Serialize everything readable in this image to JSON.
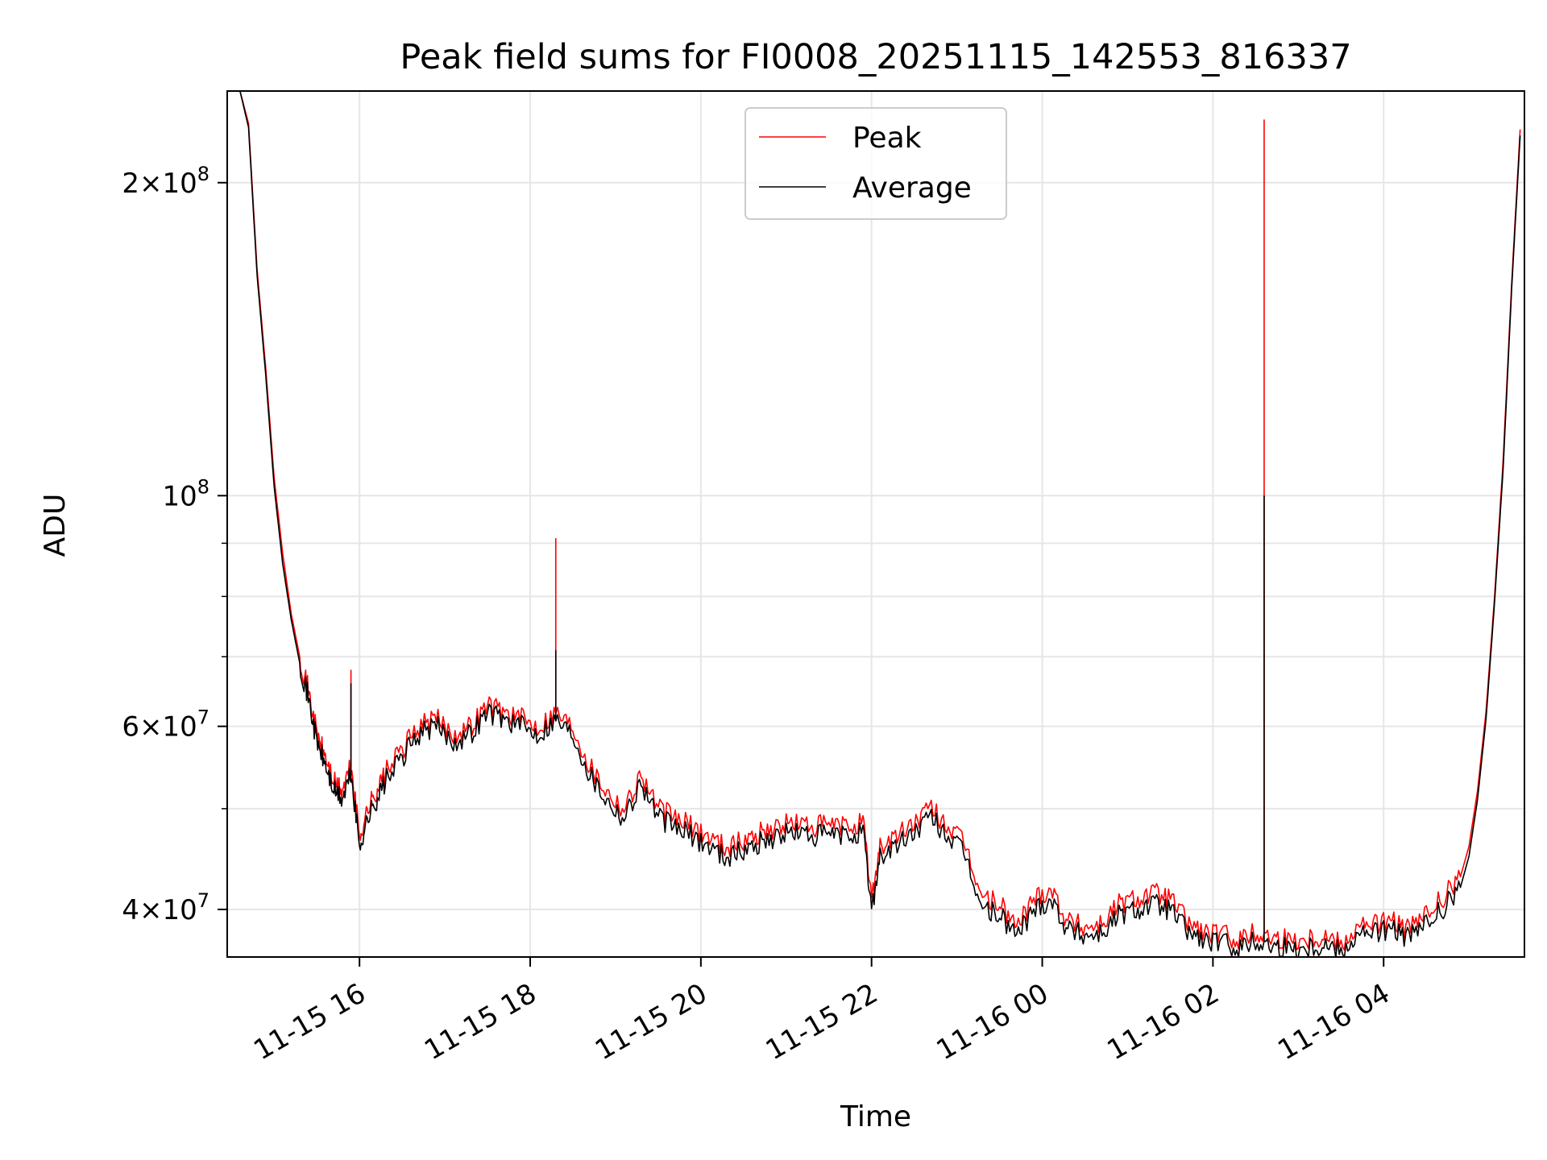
{
  "chart_data": {
    "type": "line",
    "title": "Peak field sums for FI0008_20251115_142553_816337",
    "xlabel": "Time",
    "ylabel": "ADU",
    "yscale": "log",
    "ylim": [
      36000000,
      245000000
    ],
    "xlim_hours_from_1115_0000": [
      14.45,
      29.65
    ],
    "grid": true,
    "legend_position": "top-center",
    "x_ticks": [
      {
        "h": 16,
        "label": "11-15 16"
      },
      {
        "h": 18,
        "label": "11-15 18"
      },
      {
        "h": 20,
        "label": "11-15 20"
      },
      {
        "h": 22,
        "label": "11-15 22"
      },
      {
        "h": 24,
        "label": "11-16 00"
      },
      {
        "h": 26,
        "label": "11-16 02"
      },
      {
        "h": 28,
        "label": "11-16 04"
      }
    ],
    "y_ticks": [
      {
        "v": 40000000,
        "mant": "4",
        "exp": "7"
      },
      {
        "v": 60000000,
        "mant": "6",
        "exp": "7"
      },
      {
        "v": 100000000,
        "mant": "",
        "exp": "8"
      },
      {
        "v": 200000000,
        "mant": "2",
        "exp": "8"
      }
    ],
    "y_minor_ticks": [
      50000000,
      70000000,
      80000000,
      90000000
    ],
    "times_hours_from_1115_0000": [
      14.6,
      14.7,
      14.8,
      14.9,
      15.0,
      15.1,
      15.2,
      15.3,
      15.4,
      15.5,
      15.6,
      15.7,
      15.8,
      15.9,
      16.0,
      16.1,
      16.2,
      16.3,
      16.5,
      16.7,
      16.9,
      17.1,
      17.3,
      17.5,
      17.7,
      17.9,
      18.1,
      18.3,
      18.5,
      18.7,
      18.9,
      19.1,
      19.3,
      19.5,
      19.7,
      19.9,
      20.1,
      20.3,
      20.5,
      20.7,
      20.9,
      21.1,
      21.3,
      21.5,
      21.7,
      21.9,
      22.0,
      22.1,
      22.3,
      22.5,
      22.7,
      22.9,
      23.1,
      23.3,
      23.5,
      23.7,
      23.9,
      24.1,
      24.3,
      24.5,
      24.7,
      24.9,
      25.1,
      25.3,
      25.5,
      25.7,
      25.9,
      26.1,
      26.3,
      26.5,
      26.7,
      26.9,
      27.1,
      27.3,
      27.5,
      27.7,
      27.9,
      28.1,
      28.3,
      28.5,
      28.7,
      28.9,
      29.0,
      29.1,
      29.2,
      29.3,
      29.4,
      29.5,
      29.6
    ],
    "series": [
      {
        "name": "Peak",
        "color": "#ff0000",
        "values": [
          245000000,
          228000000,
          165000000,
          133000000,
          104000000,
          88000000,
          77000000,
          70000000,
          65000000,
          59000000,
          56000000,
          53000000,
          52000000,
          55000000,
          47000000,
          50000000,
          52000000,
          54000000,
          57000000,
          60000000,
          61000000,
          59000000,
          60000000,
          63000000,
          62000000,
          61000000,
          60000000,
          62000000,
          60000000,
          55000000,
          52000000,
          50000000,
          54000000,
          50000000,
          49000000,
          48000000,
          47000000,
          46000000,
          46500000,
          47500000,
          48000000,
          48500000,
          48000000,
          48200000,
          48000000,
          48500000,
          41000000,
          46000000,
          47000000,
          48500000,
          50000000,
          48000000,
          46000000,
          41000000,
          40500000,
          38500000,
          41000000,
          42000000,
          39000000,
          38500000,
          38800000,
          40500000,
          41000000,
          41500000,
          41000000,
          39000000,
          38000000,
          37800000,
          37500000,
          38000000,
          37600000,
          37500000,
          37500000,
          37800000,
          37200000,
          38500000,
          38800000,
          39000000,
          38200000,
          39500000,
          41000000,
          43000000,
          46000000,
          52000000,
          62000000,
          80000000,
          108000000,
          160000000,
          225000000
        ],
        "spikes": [
          {
            "h": 18.3,
            "v": 91000000
          },
          {
            "h": 26.6,
            "v": 230000000
          },
          {
            "h": 15.9,
            "v": 68000000
          }
        ]
      },
      {
        "name": "Average",
        "color": "#000000",
        "values": [
          245000000,
          226000000,
          163000000,
          131000000,
          102000000,
          86000000,
          76000000,
          69000000,
          64000000,
          58000000,
          55000000,
          52000000,
          51000000,
          54000000,
          46000000,
          49000000,
          51000000,
          53000000,
          56000000,
          59000000,
          60000000,
          58000000,
          59000000,
          62000000,
          61000000,
          60000000,
          59000000,
          61000000,
          59000000,
          54000000,
          51000000,
          49000000,
          53000000,
          49000000,
          48000000,
          47000000,
          46000000,
          45000000,
          45500000,
          46500000,
          47000000,
          47500000,
          47000000,
          47200000,
          47000000,
          47500000,
          40000000,
          45000000,
          46000000,
          47500000,
          49000000,
          47000000,
          45000000,
          40000000,
          39500000,
          37800000,
          40000000,
          41000000,
          38300000,
          37800000,
          38000000,
          39500000,
          40000000,
          40500000,
          40000000,
          38200000,
          37300000,
          37100000,
          36800000,
          37300000,
          36900000,
          36800000,
          36800000,
          37100000,
          36600000,
          37800000,
          38100000,
          38300000,
          37500000,
          38700000,
          40000000,
          42000000,
          45000000,
          51000000,
          61000000,
          79000000,
          106000000,
          158000000,
          222000000
        ],
        "spikes": [
          {
            "h": 18.3,
            "v": 71000000
          },
          {
            "h": 26.6,
            "v": 100000000
          },
          {
            "h": 15.9,
            "v": 66000000
          }
        ]
      }
    ]
  }
}
